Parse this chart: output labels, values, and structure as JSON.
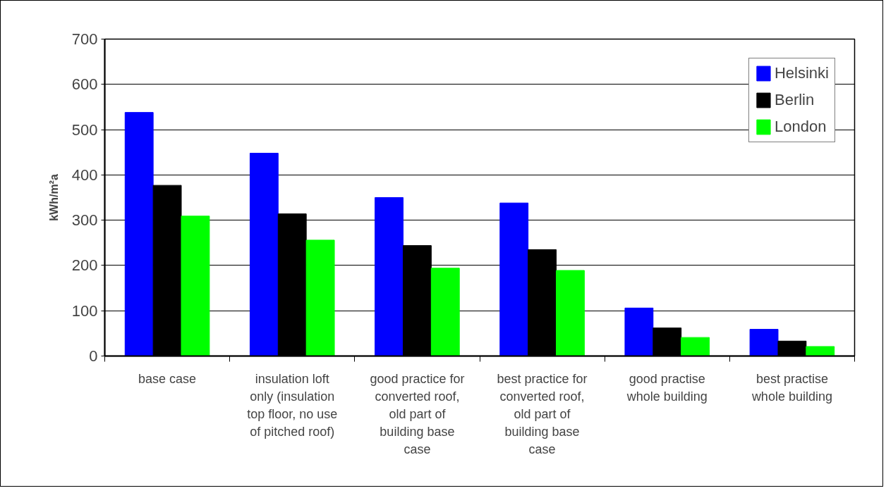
{
  "chart_data": {
    "type": "bar",
    "ylabel": "kWh/m²a",
    "categories": [
      "base case",
      "insulation loft only (insulation top floor, no use of pitched roof)",
      "good practice for converted roof, old part of building base case",
      "best practice for converted roof, old part of building base case",
      "good practise whole building",
      "best practise whole building"
    ],
    "series": [
      {
        "name": "Helsinki",
        "color": "#0000ff",
        "values": [
          538,
          448,
          350,
          338,
          106,
          59
        ]
      },
      {
        "name": "Berlin",
        "color": "#000000",
        "values": [
          377,
          314,
          244,
          235,
          62,
          33
        ]
      },
      {
        "name": "London",
        "color": "#00ff00",
        "values": [
          309,
          256,
          194,
          189,
          41,
          21
        ]
      }
    ],
    "ylim": [
      0,
      700
    ],
    "yticks": [
      0,
      100,
      200,
      300,
      400,
      500,
      600,
      700
    ],
    "grid": "y",
    "legend": "top right"
  }
}
